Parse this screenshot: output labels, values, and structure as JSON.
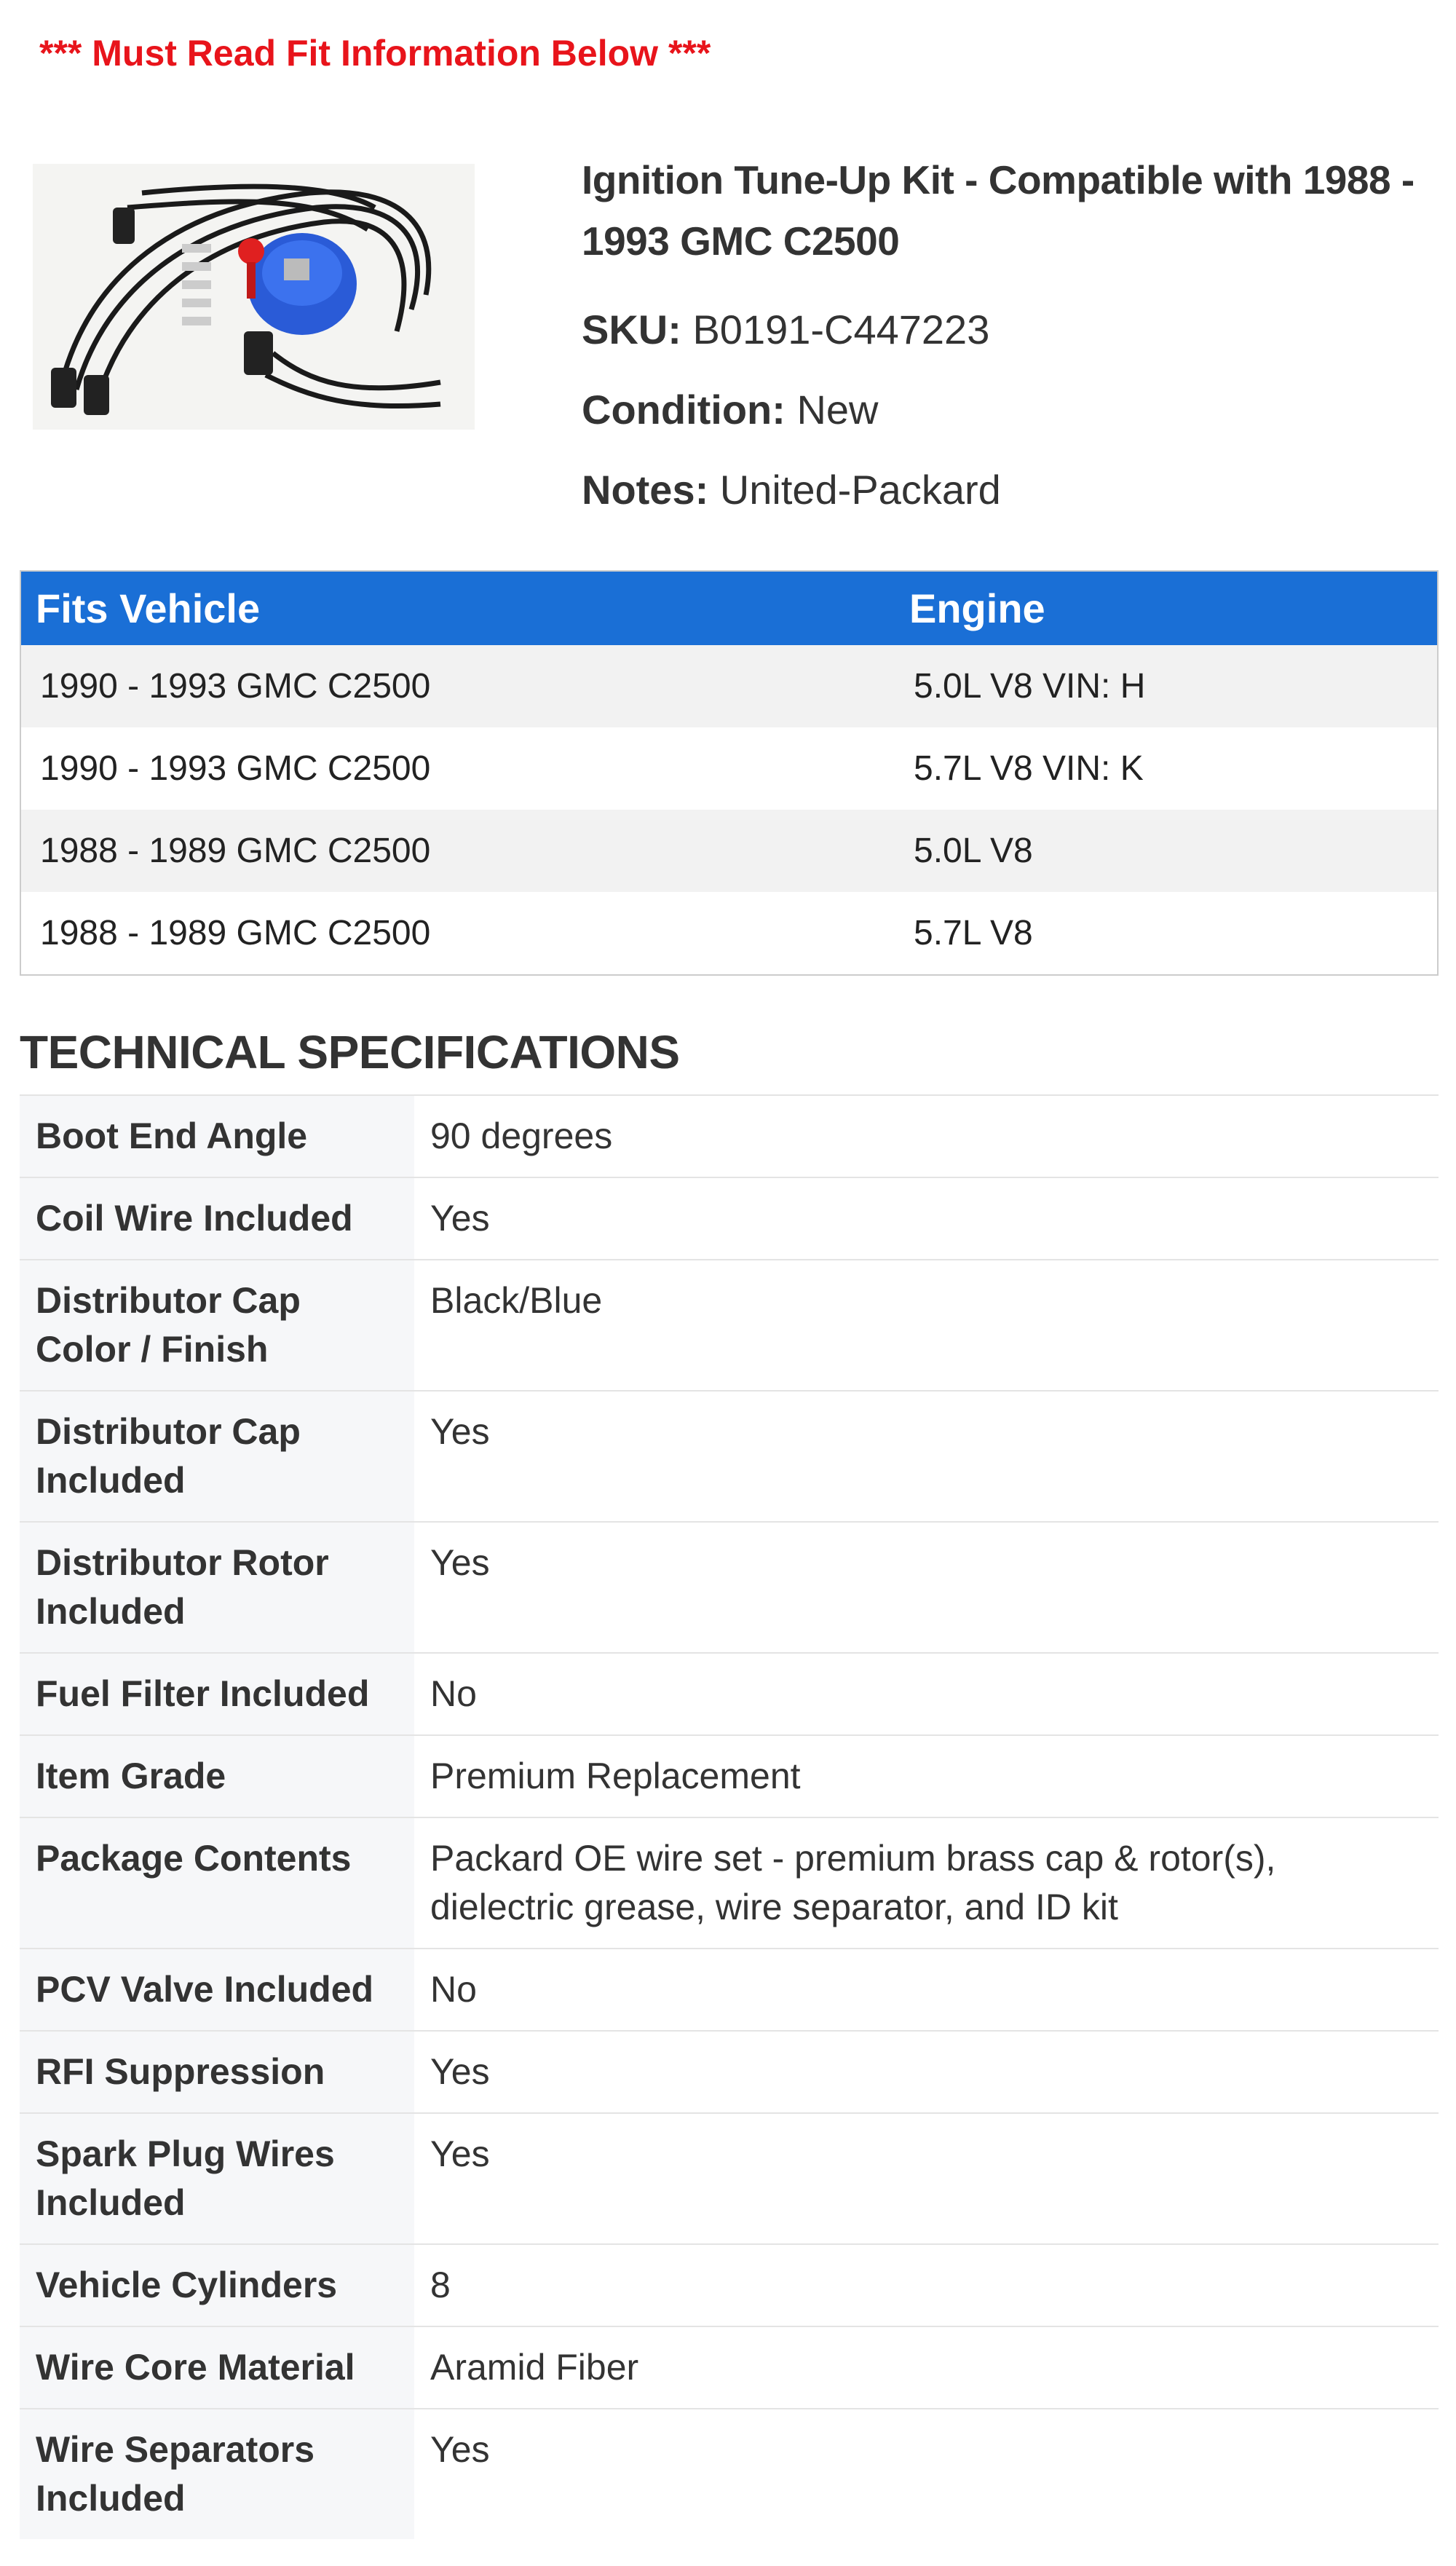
{
  "header": {
    "notice": "*** Must Read Fit Information Below ***"
  },
  "product": {
    "title": "Ignition Tune-Up Kit - Compatible with 1988 - 1993 GMC C2500",
    "details": [
      {
        "label": "SKU:",
        "value": "B0191-C447223"
      },
      {
        "label": "Condition:",
        "value": "New"
      },
      {
        "label": "Notes:",
        "value": "United-Packard"
      }
    ]
  },
  "fits_table": {
    "headers": [
      "Fits Vehicle",
      "Engine"
    ],
    "rows": [
      [
        "1990 - 1993 GMC C2500",
        "5.0L V8 VIN: H"
      ],
      [
        "1990 - 1993 GMC C2500",
        "5.7L V8 VIN: K"
      ],
      [
        "1988 - 1989 GMC C2500",
        "5.0L V8"
      ],
      [
        "1988 - 1989 GMC C2500",
        "5.7L V8"
      ]
    ]
  },
  "specs": {
    "title": "TECHNICAL SPECIFICATIONS",
    "rows": [
      [
        "Boot End Angle",
        "90 degrees"
      ],
      [
        "Coil Wire Included",
        "Yes"
      ],
      [
        "Distributor Cap Color / Finish",
        "Black/Blue"
      ],
      [
        "Distributor Cap Included",
        "Yes"
      ],
      [
        "Distributor Rotor Included",
        "Yes"
      ],
      [
        "Fuel Filter Included",
        "No"
      ],
      [
        "Item Grade",
        "Premium Replacement"
      ],
      [
        "Package Contents",
        "Packard OE wire set - premium brass cap & rotor(s), dielectric grease, wire separator, and ID kit"
      ],
      [
        "PCV Valve Included",
        "No"
      ],
      [
        "RFI Suppression",
        "Yes"
      ],
      [
        "Spark Plug Wires Included",
        "Yes"
      ],
      [
        "Vehicle Cylinders",
        "8"
      ],
      [
        "Wire Core Material",
        "Aramid Fiber"
      ],
      [
        "Wire Separators Included",
        "Yes"
      ]
    ]
  }
}
